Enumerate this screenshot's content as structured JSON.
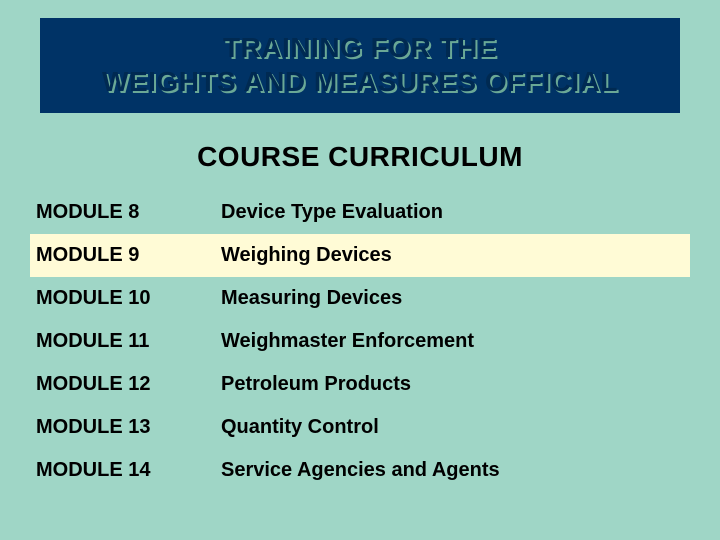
{
  "colors": {
    "slide_bg": "#9fd6c6",
    "title_bg": "#003366",
    "title_text": "#002a52",
    "title_shadow": "#6aa896",
    "title_border": "#003366",
    "subtitle_color": "#000000",
    "text_color": "#000000",
    "highlight_bg": "#fffbd6"
  },
  "typography": {
    "title_fontsize": 28,
    "subtitle_fontsize": 28,
    "row_fontsize": 20
  },
  "title": {
    "line1": "TRAINING FOR THE",
    "line2": "WEIGHTS AND MEASURES OFFICIAL"
  },
  "subtitle": "COURSE CURRICULUM",
  "modules": [
    {
      "label": "MODULE 8",
      "desc": "Device Type Evaluation",
      "highlighted": false
    },
    {
      "label": "MODULE 9",
      "desc": "Weighing Devices",
      "highlighted": true
    },
    {
      "label": "MODULE 10",
      "desc": "Measuring Devices",
      "highlighted": false
    },
    {
      "label": "MODULE 11",
      "desc": "Weighmaster Enforcement",
      "highlighted": false
    },
    {
      "label": "MODULE 12",
      "desc": "Petroleum Products",
      "highlighted": false
    },
    {
      "label": "MODULE 13",
      "desc": "Quantity Control",
      "highlighted": false
    },
    {
      "label": "MODULE 14",
      "desc": "Service Agencies and Agents",
      "highlighted": false
    }
  ]
}
